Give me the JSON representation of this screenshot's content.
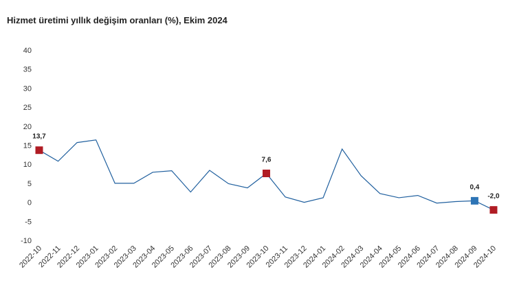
{
  "chart_data": {
    "type": "line",
    "title": "Hizmet üretimi yıllık değişim oranları (%), Ekim 2024",
    "xlabel": "",
    "ylabel": "",
    "ylim": [
      -10,
      40
    ],
    "yticks": [
      40,
      35,
      30,
      25,
      20,
      15,
      10,
      5,
      0,
      -5,
      -10
    ],
    "grid": false,
    "categories": [
      "2022-10",
      "2022-11",
      "2022-12",
      "2023-01",
      "2023-02",
      "2023-03",
      "2023-04",
      "2023-05",
      "2023-06",
      "2023-07",
      "2023-08",
      "2023-09",
      "2023-10",
      "2023-11",
      "2023-12",
      "2024-01",
      "2024-02",
      "2024-03",
      "2024-04",
      "2024-05",
      "2024-06",
      "2024-07",
      "2024-08",
      "2024-09",
      "2024-10"
    ],
    "series": [
      {
        "values": [
          13.7,
          10.8,
          15.7,
          16.4,
          5.0,
          5.0,
          7.9,
          8.3,
          2.7,
          8.4,
          4.9,
          3.8,
          7.6,
          1.4,
          0.0,
          1.2,
          14.0,
          7.0,
          2.3,
          1.2,
          1.8,
          -0.2,
          0.2,
          0.4,
          -2.0
        ],
        "color": "#1f5f9e"
      }
    ],
    "highlighted_points": [
      {
        "index": 0,
        "label": "13,7",
        "color": "#b01c24"
      },
      {
        "index": 12,
        "label": "7,6",
        "color": "#b01c24"
      },
      {
        "index": 23,
        "label": "0,4",
        "color": "#2e75b6"
      },
      {
        "index": 24,
        "label": "-2,0",
        "color": "#b01c24"
      }
    ]
  }
}
